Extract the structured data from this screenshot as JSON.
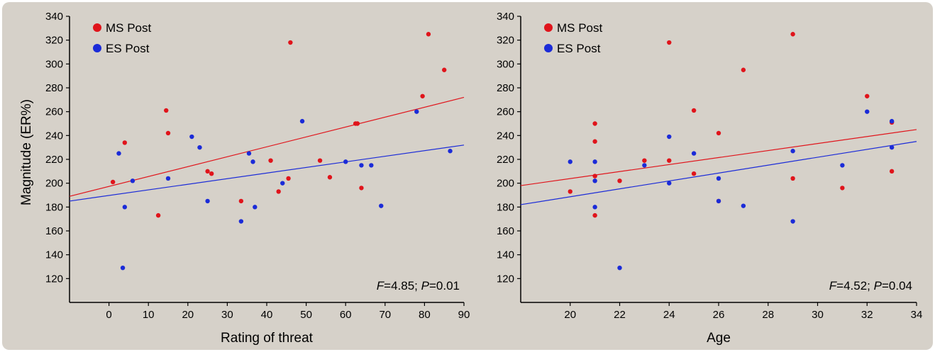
{
  "figure": {
    "background": "#d6d1c9"
  },
  "chart_data": [
    {
      "type": "scatter",
      "xlabel": "Rating of threat",
      "ylabel": "Magnitude (ER%)",
      "xlim": [
        -10,
        90
      ],
      "ylim": [
        100,
        340
      ],
      "xticks": [
        0,
        10,
        20,
        30,
        40,
        50,
        60,
        70,
        80,
        90
      ],
      "yticks": [
        120,
        140,
        160,
        180,
        200,
        220,
        240,
        260,
        280,
        300,
        320,
        340
      ],
      "legend_position": "top-left",
      "grid": false,
      "stat": {
        "f_label": "F",
        "f_text": "=4.85; ",
        "p_label": "P",
        "p_text": "=0.01"
      },
      "series": [
        {
          "name": "MS Post",
          "color": "#e0141b",
          "fit": [
            [
              -10,
              189
            ],
            [
              90,
              272
            ]
          ],
          "points": [
            [
              1,
              201
            ],
            [
              4,
              234
            ],
            [
              12.5,
              173
            ],
            [
              14.5,
              261
            ],
            [
              15,
              242
            ],
            [
              25,
              210
            ],
            [
              26,
              208
            ],
            [
              33.5,
              185
            ],
            [
              41,
              219
            ],
            [
              43,
              193
            ],
            [
              45.5,
              204
            ],
            [
              46,
              318
            ],
            [
              53.5,
              219
            ],
            [
              56,
              205
            ],
            [
              62.5,
              250
            ],
            [
              63,
              250
            ],
            [
              64,
              196
            ],
            [
              79.5,
              273
            ],
            [
              81,
              325
            ],
            [
              85,
              295
            ]
          ]
        },
        {
          "name": "ES Post",
          "color": "#1b2bd8",
          "fit": [
            [
              -10,
              185
            ],
            [
              90,
              232
            ]
          ],
          "points": [
            [
              2.5,
              225
            ],
            [
              3.5,
              129
            ],
            [
              4,
              180
            ],
            [
              6,
              202
            ],
            [
              15,
              204
            ],
            [
              21,
              239
            ],
            [
              23,
              230
            ],
            [
              25,
              185
            ],
            [
              33.5,
              168
            ],
            [
              35.5,
              225
            ],
            [
              36.5,
              218
            ],
            [
              37,
              180
            ],
            [
              44,
              200
            ],
            [
              49,
              252
            ],
            [
              60,
              218
            ],
            [
              64,
              215
            ],
            [
              66.5,
              215
            ],
            [
              69,
              181
            ],
            [
              78,
              260
            ],
            [
              86.5,
              227
            ]
          ]
        }
      ]
    },
    {
      "type": "scatter",
      "xlabel": "Age",
      "ylabel": "",
      "xlim": [
        18,
        34
      ],
      "ylim": [
        100,
        340
      ],
      "xticks": [
        20,
        22,
        24,
        26,
        28,
        30,
        32,
        34
      ],
      "yticks": [
        120,
        140,
        160,
        180,
        200,
        220,
        240,
        260,
        280,
        300,
        320,
        340
      ],
      "legend_position": "top-left",
      "grid": false,
      "stat": {
        "f_label": "F",
        "f_text": "=4.52; ",
        "p_label": "P",
        "p_text": "=0.04"
      },
      "series": [
        {
          "name": "MS Post",
          "color": "#e0141b",
          "fit": [
            [
              18,
              198
            ],
            [
              34,
              245
            ]
          ],
          "points": [
            [
              20,
              193
            ],
            [
              21,
              250
            ],
            [
              21,
              235
            ],
            [
              21,
              206
            ],
            [
              21,
              173
            ],
            [
              22,
              202
            ],
            [
              23,
              219
            ],
            [
              24,
              318
            ],
            [
              24,
              219
            ],
            [
              25,
              261
            ],
            [
              25,
              208
            ],
            [
              26,
              242
            ],
            [
              26,
              185
            ],
            [
              27,
              295
            ],
            [
              29,
              325
            ],
            [
              29,
              204
            ],
            [
              31,
              196
            ],
            [
              32,
              273
            ],
            [
              33,
              251
            ],
            [
              33,
              210
            ]
          ]
        },
        {
          "name": "ES Post",
          "color": "#1b2bd8",
          "fit": [
            [
              18,
              182
            ],
            [
              34,
              235
            ]
          ],
          "points": [
            [
              20,
              218
            ],
            [
              21,
              218
            ],
            [
              21,
              202
            ],
            [
              21,
              180
            ],
            [
              22,
              129
            ],
            [
              23,
              215
            ],
            [
              24,
              239
            ],
            [
              24,
              200
            ],
            [
              25,
              225
            ],
            [
              26,
              204
            ],
            [
              26,
              185
            ],
            [
              27,
              181
            ],
            [
              29,
              227
            ],
            [
              29,
              168
            ],
            [
              31,
              215
            ],
            [
              32,
              260
            ],
            [
              33,
              252
            ],
            [
              33,
              230
            ]
          ]
        }
      ]
    }
  ]
}
